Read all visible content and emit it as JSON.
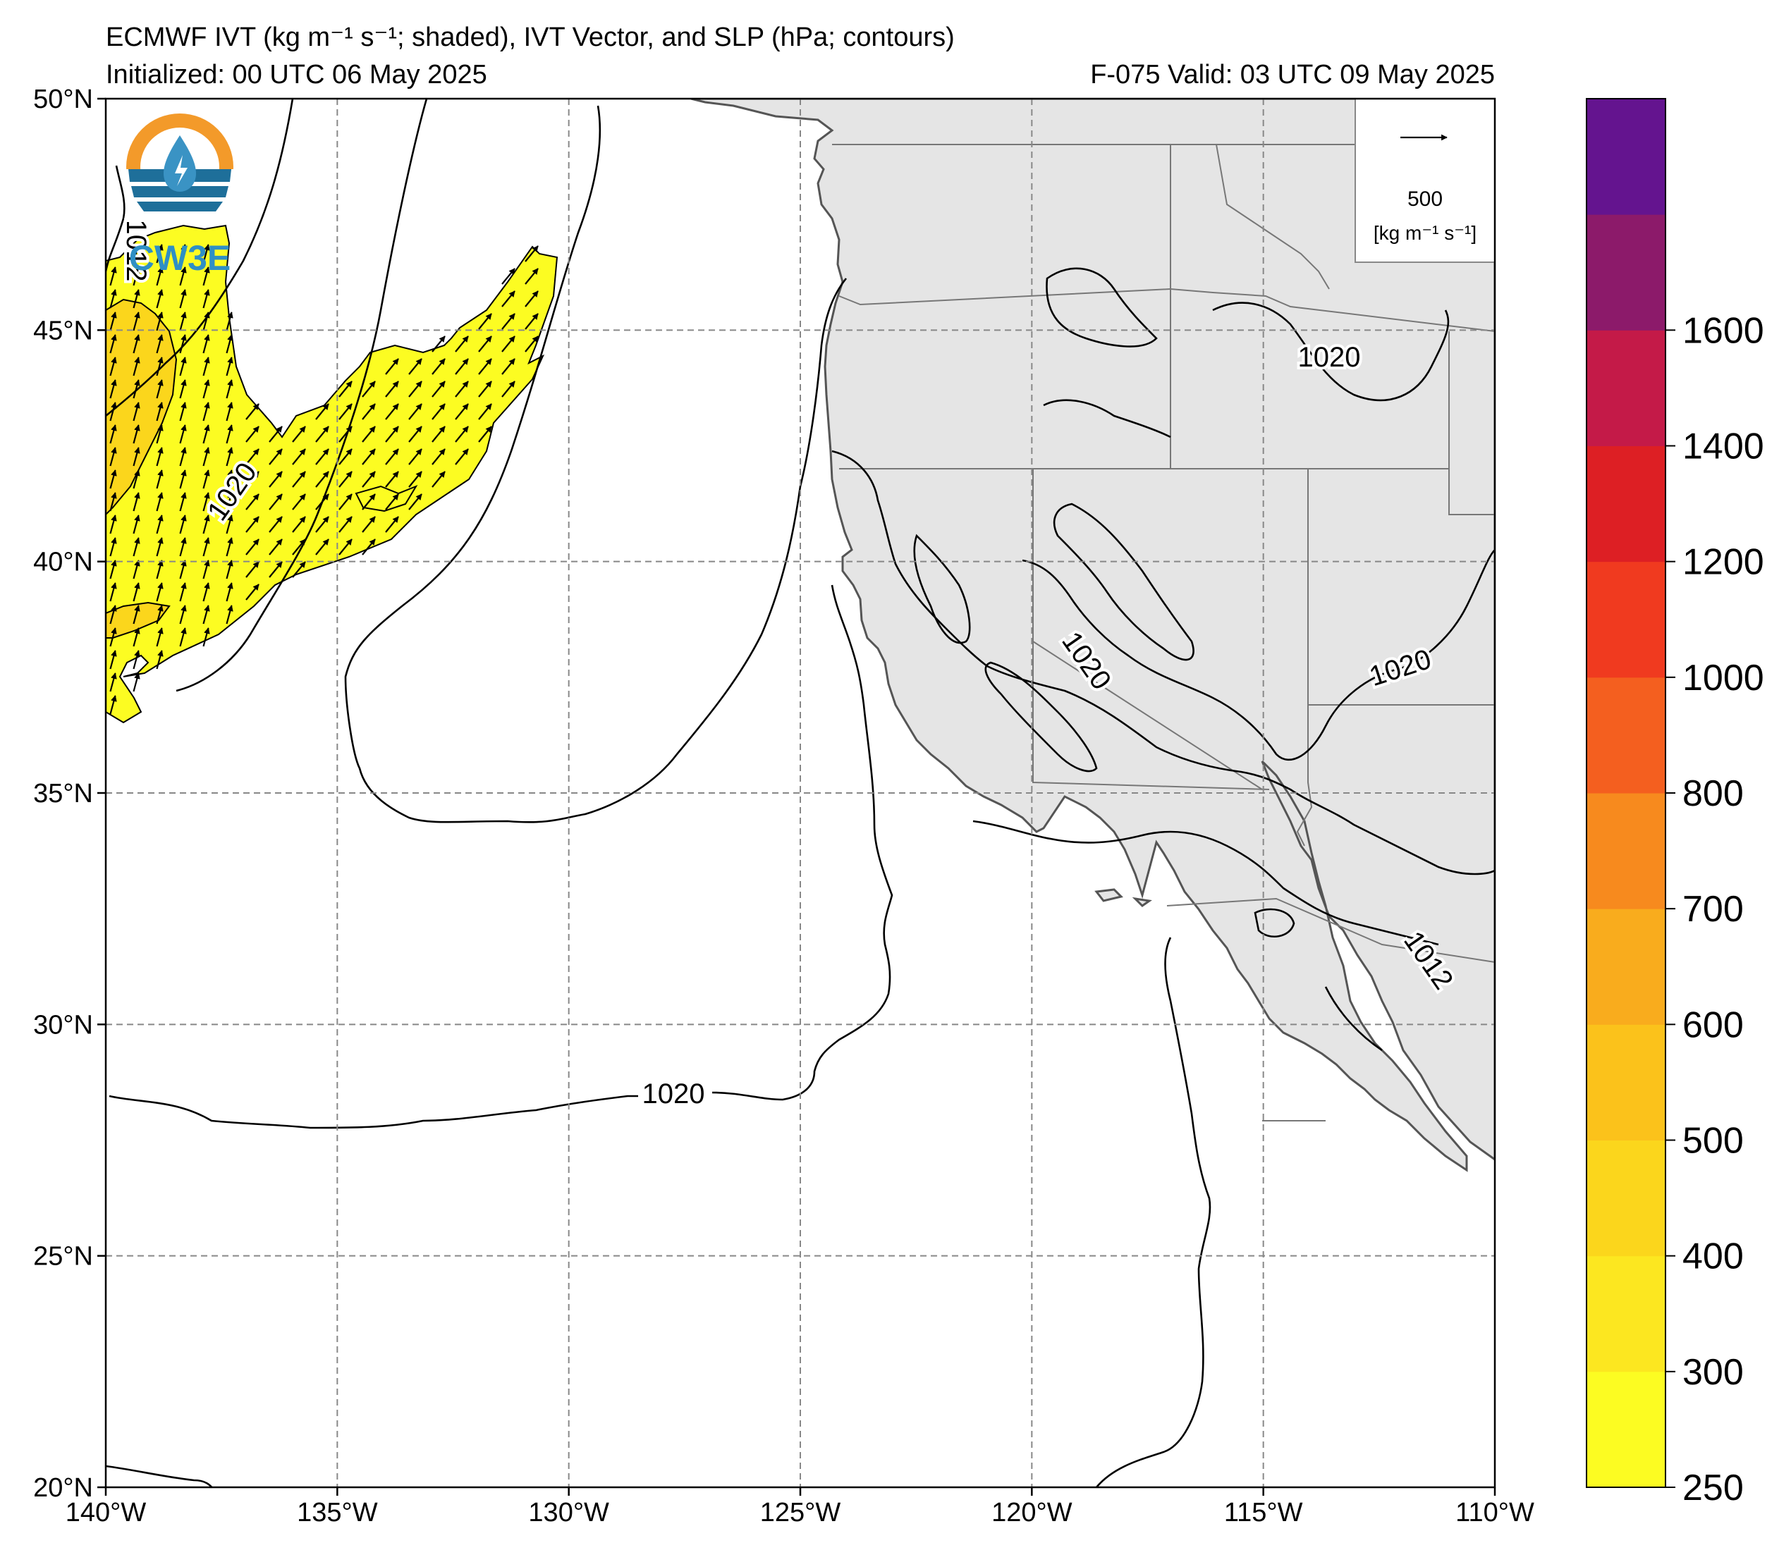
{
  "header": {
    "title_line": "ECMWF IVT (kg m⁻¹ s⁻¹; shaded), IVT Vector, and SLP (hPa; contours)",
    "initialized": "Initialized: 00 UTC 06 May 2025",
    "valid": "F-075  Valid: 03 UTC 09 May 2025"
  },
  "logo": {
    "text": "CW3E"
  },
  "map": {
    "lon_range": [
      -140,
      -110
    ],
    "lat_range": [
      20,
      50
    ],
    "lon_ticks": [
      {
        "value": -140,
        "label": "140°W"
      },
      {
        "value": -135,
        "label": "135°W"
      },
      {
        "value": -130,
        "label": "130°W"
      },
      {
        "value": -125,
        "label": "125°W"
      },
      {
        "value": -120,
        "label": "120°W"
      },
      {
        "value": -115,
        "label": "115°W"
      },
      {
        "value": -110,
        "label": "110°W"
      }
    ],
    "lat_ticks": [
      {
        "value": 20,
        "label": "20°N"
      },
      {
        "value": 25,
        "label": "25°N"
      },
      {
        "value": 30,
        "label": "30°N"
      },
      {
        "value": 35,
        "label": "35°N"
      },
      {
        "value": 40,
        "label": "40°N"
      },
      {
        "value": 45,
        "label": "45°N"
      },
      {
        "value": 50,
        "label": "50°N"
      }
    ],
    "gridlines": true,
    "land_color": "#e5e5e5",
    "slp_contour_labels": [
      "1020",
      "1020",
      "1020",
      "1020",
      "1020",
      "1012",
      "1012"
    ],
    "vector_reference": {
      "value": "500",
      "unit": "[kg m⁻¹ s⁻¹]"
    }
  },
  "colorbar": {
    "levels": [
      250,
      300,
      400,
      500,
      600,
      700,
      800,
      1000,
      1200,
      1400,
      1600
    ],
    "labels": [
      "250",
      "300",
      "400",
      "500",
      "600",
      "700",
      "800",
      "1000",
      "1200",
      "1400",
      "1600"
    ],
    "colors": [
      "#fcfc22",
      "#fce720",
      "#fbd61c",
      "#fbc21b",
      "#f9ac1d",
      "#f78a1e",
      "#f45f1f",
      "#f03a1f",
      "#dd1f24",
      "#c41a48",
      "#8c1a6a",
      "#64148f"
    ]
  }
}
